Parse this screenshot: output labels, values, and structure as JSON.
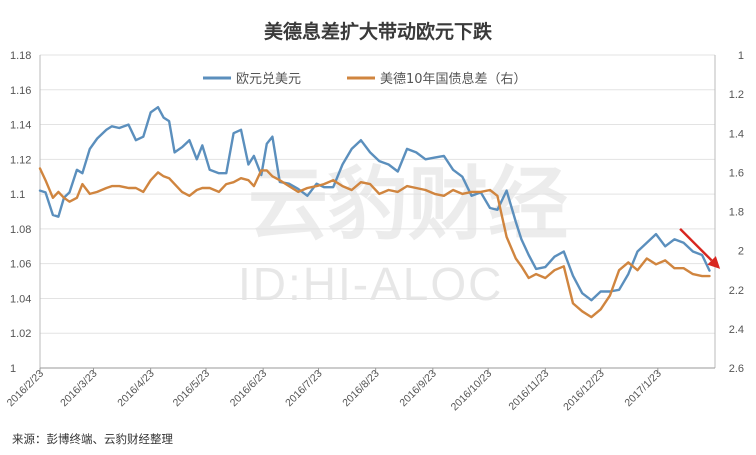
{
  "watermark": {
    "logo_text": "云豹财经",
    "id_text": "ID:HI-ALOC"
  },
  "chart_data": {
    "type": "line",
    "title": "美德息差扩大带动欧元下跌",
    "source": "来源：彭博终端、云豹财经整理",
    "x_ticks": [
      "2016/2/23",
      "2016/3/23",
      "2016/4/23",
      "2016/5/23",
      "2016/6/23",
      "2016/7/23",
      "2016/8/23",
      "2016/9/23",
      "2016/10/23",
      "2016/11/23",
      "2016/12/23",
      "2017/1/23"
    ],
    "x_range": [
      "2016/2/23",
      "2017/2/23"
    ],
    "y_left": {
      "ticks": [
        "1.18",
        "1.16",
        "1.14",
        "1.12",
        "1.1",
        "1.08",
        "1.06",
        "1.04",
        "1.02",
        "1"
      ],
      "range": [
        1.0,
        1.18
      ]
    },
    "y_right": {
      "ticks": [
        "1",
        "1.2",
        "1.4",
        "1.6",
        "1.8",
        "2",
        "2.2",
        "2.4",
        "2.6"
      ],
      "range": [
        1.0,
        2.6
      ],
      "inverted": true
    },
    "grid": true,
    "legend_position": "top",
    "colors": {
      "eurusd": "#5b8fbd",
      "spread": "#d0853f",
      "arrow": "#d8261f"
    },
    "series": [
      {
        "name": "欧元兑美元",
        "axis": "left",
        "x": [
          "2016/2/23",
          "2016/2/26",
          "2016/3/1",
          "2016/3/4",
          "2016/3/7",
          "2016/3/10",
          "2016/3/14",
          "2016/3/17",
          "2016/3/21",
          "2016/3/25",
          "2016/3/30",
          "2016/4/2",
          "2016/4/6",
          "2016/4/11",
          "2016/4/15",
          "2016/4/19",
          "2016/4/23",
          "2016/4/27",
          "2016/4/30",
          "2016/5/3",
          "2016/5/6",
          "2016/5/10",
          "2016/5/14",
          "2016/5/18",
          "2016/5/21",
          "2016/5/25",
          "2016/5/30",
          "2016/6/3",
          "2016/6/7",
          "2016/6/11",
          "2016/6/15",
          "2016/6/18",
          "2016/6/22",
          "2016/6/25",
          "2016/6/28",
          "2016/7/2",
          "2016/7/7",
          "2016/7/12",
          "2016/7/17",
          "2016/7/22",
          "2016/7/26",
          "2016/7/31",
          "2016/8/5",
          "2016/8/10",
          "2016/8/15",
          "2016/8/20",
          "2016/8/25",
          "2016/8/30",
          "2016/9/4",
          "2016/9/9",
          "2016/9/14",
          "2016/9/19",
          "2016/9/24",
          "2016/9/29",
          "2016/10/4",
          "2016/10/9",
          "2016/10/14",
          "2016/10/19",
          "2016/10/24",
          "2016/10/28",
          "2016/11/2",
          "2016/11/7",
          "2016/11/10",
          "2016/11/14",
          "2016/11/18",
          "2016/11/23",
          "2016/11/28",
          "2016/12/3",
          "2016/12/8",
          "2016/12/13",
          "2016/12/18",
          "2016/12/23",
          "2016/12/28",
          "2017/1/2",
          "2017/1/7",
          "2017/1/12",
          "2017/1/17",
          "2017/1/22",
          "2017/1/27",
          "2017/2/1",
          "2017/2/6",
          "2017/2/11",
          "2017/2/16",
          "2017/2/20"
        ],
        "values": [
          1.102,
          1.101,
          1.088,
          1.087,
          1.098,
          1.101,
          1.114,
          1.112,
          1.126,
          1.132,
          1.137,
          1.139,
          1.138,
          1.14,
          1.131,
          1.133,
          1.147,
          1.15,
          1.144,
          1.142,
          1.124,
          1.127,
          1.131,
          1.12,
          1.128,
          1.114,
          1.112,
          1.112,
          1.135,
          1.137,
          1.117,
          1.122,
          1.111,
          1.129,
          1.133,
          1.107,
          1.106,
          1.103,
          1.099,
          1.106,
          1.104,
          1.104,
          1.117,
          1.126,
          1.131,
          1.124,
          1.119,
          1.117,
          1.113,
          1.126,
          1.124,
          1.12,
          1.121,
          1.122,
          1.114,
          1.11,
          1.099,
          1.101,
          1.092,
          1.091,
          1.102,
          1.084,
          1.074,
          1.065,
          1.057,
          1.058,
          1.064,
          1.067,
          1.053,
          1.043,
          1.039,
          1.044,
          1.044,
          1.045,
          1.054,
          1.067,
          1.072,
          1.077,
          1.07,
          1.074,
          1.072,
          1.067,
          1.065,
          1.056
        ]
      },
      {
        "name": "美德10年国债息差（右）",
        "axis": "right",
        "x": [
          "2016/2/23",
          "2016/2/26",
          "2016/3/1",
          "2016/3/4",
          "2016/3/7",
          "2016/3/10",
          "2016/3/14",
          "2016/3/17",
          "2016/3/21",
          "2016/3/25",
          "2016/3/30",
          "2016/4/2",
          "2016/4/6",
          "2016/4/11",
          "2016/4/15",
          "2016/4/19",
          "2016/4/23",
          "2016/4/27",
          "2016/4/30",
          "2016/5/3",
          "2016/5/6",
          "2016/5/10",
          "2016/5/14",
          "2016/5/18",
          "2016/5/21",
          "2016/5/25",
          "2016/5/30",
          "2016/6/3",
          "2016/6/7",
          "2016/6/11",
          "2016/6/15",
          "2016/6/18",
          "2016/6/22",
          "2016/6/25",
          "2016/6/28",
          "2016/7/2",
          "2016/7/7",
          "2016/7/12",
          "2016/7/17",
          "2016/7/22",
          "2016/7/26",
          "2016/7/31",
          "2016/8/5",
          "2016/8/10",
          "2016/8/15",
          "2016/8/20",
          "2016/8/25",
          "2016/8/30",
          "2016/9/4",
          "2016/9/9",
          "2016/9/14",
          "2016/9/19",
          "2016/9/24",
          "2016/9/29",
          "2016/10/4",
          "2016/10/9",
          "2016/10/14",
          "2016/10/19",
          "2016/10/24",
          "2016/10/28",
          "2016/11/2",
          "2016/11/7",
          "2016/11/10",
          "2016/11/14",
          "2016/11/18",
          "2016/11/23",
          "2016/11/28",
          "2016/12/3",
          "2016/12/8",
          "2016/12/13",
          "2016/12/18",
          "2016/12/23",
          "2016/12/28",
          "2017/1/2",
          "2017/1/7",
          "2017/1/12",
          "2017/1/17",
          "2017/1/22",
          "2017/1/27",
          "2017/2/1",
          "2017/2/6",
          "2017/2/11",
          "2017/2/16",
          "2017/2/20"
        ],
        "values": [
          1.58,
          1.64,
          1.73,
          1.7,
          1.73,
          1.75,
          1.73,
          1.66,
          1.71,
          1.7,
          1.68,
          1.67,
          1.67,
          1.68,
          1.68,
          1.7,
          1.64,
          1.6,
          1.62,
          1.63,
          1.66,
          1.7,
          1.72,
          1.69,
          1.68,
          1.68,
          1.7,
          1.66,
          1.65,
          1.63,
          1.64,
          1.67,
          1.59,
          1.59,
          1.62,
          1.64,
          1.67,
          1.7,
          1.68,
          1.67,
          1.66,
          1.64,
          1.67,
          1.69,
          1.65,
          1.66,
          1.71,
          1.69,
          1.7,
          1.67,
          1.68,
          1.69,
          1.71,
          1.72,
          1.69,
          1.71,
          1.7,
          1.7,
          1.69,
          1.72,
          1.93,
          2.04,
          2.08,
          2.14,
          2.12,
          2.14,
          2.1,
          2.08,
          2.27,
          2.31,
          2.34,
          2.3,
          2.23,
          2.1,
          2.06,
          2.1,
          2.04,
          2.07,
          2.05,
          2.09,
          2.09,
          2.12,
          2.13,
          2.13
        ]
      }
    ],
    "annotations": [
      {
        "type": "arrow",
        "points_to": "2017/2/16"
      }
    ]
  }
}
